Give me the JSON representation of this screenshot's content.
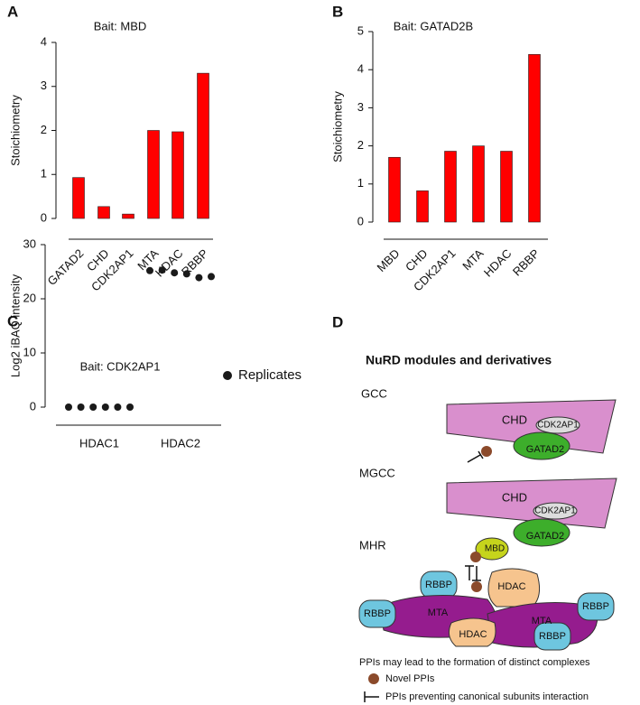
{
  "chart_data": [
    {
      "panel": "A",
      "type": "bar",
      "title": "Bait: MBD",
      "y_label": "Stoichiometry",
      "categories": [
        "GATAD2",
        "CHD",
        "CDK2AP1",
        "MTA",
        "HDAC",
        "RBBP"
      ],
      "values": [
        0.93,
        0.27,
        0.1,
        2.0,
        1.97,
        3.3
      ],
      "color": "#ff0000",
      "ylim": [
        0,
        4
      ],
      "yticks": [
        0,
        1,
        2,
        3,
        4
      ]
    },
    {
      "panel": "B",
      "type": "bar",
      "title": "Bait: GATAD2B",
      "y_label": "Stoichiometry",
      "categories": [
        "MBD",
        "CHD",
        "CDK2AP1",
        "MTA",
        "HDAC",
        "RBBP"
      ],
      "values": [
        1.7,
        0.82,
        1.86,
        2.0,
        1.86,
        4.4
      ],
      "color": "#ff0000",
      "ylim": [
        0,
        5
      ],
      "yticks": [
        0,
        1,
        2,
        3,
        4,
        5
      ]
    },
    {
      "panel": "C",
      "type": "strip",
      "title": "Bait: CDK2AP1",
      "y_label": "Log2 iBAQ intensity",
      "categories": [
        "HDAC1",
        "HDAC2"
      ],
      "series": [
        {
          "name": "Replicates",
          "color": "#1a1a1a",
          "values": [
            [
              0,
              0,
              0,
              0,
              0,
              0
            ],
            [
              25.2,
              25.3,
              24.8,
              24.6,
              23.9,
              24.1
            ]
          ]
        }
      ],
      "ylim": [
        0,
        30
      ],
      "yticks": [
        0,
        10,
        20,
        30
      ]
    }
  ],
  "diagram": {
    "panel": "D",
    "title": "NuRD modules and derivatives",
    "modules": [
      {
        "label": "GCC",
        "nodes": [
          "CHD",
          "CDK2AP1",
          "GATAD2"
        ]
      },
      {
        "label": "MGCC",
        "nodes": [
          "CHD",
          "CDK2AP1",
          "GATAD2",
          "MBD"
        ]
      },
      {
        "label": "MHR",
        "nodes": [
          "RBBP",
          "HDAC",
          "RBBP",
          "MTA",
          "MTA",
          "RBBP",
          "HDAC",
          "RBBP"
        ]
      }
    ],
    "legend": {
      "caption": "PPIs may lead to the formation of distinct complexes",
      "items": [
        "Novel PPIs",
        "PPIs preventing canonical subunits interaction"
      ]
    }
  }
}
